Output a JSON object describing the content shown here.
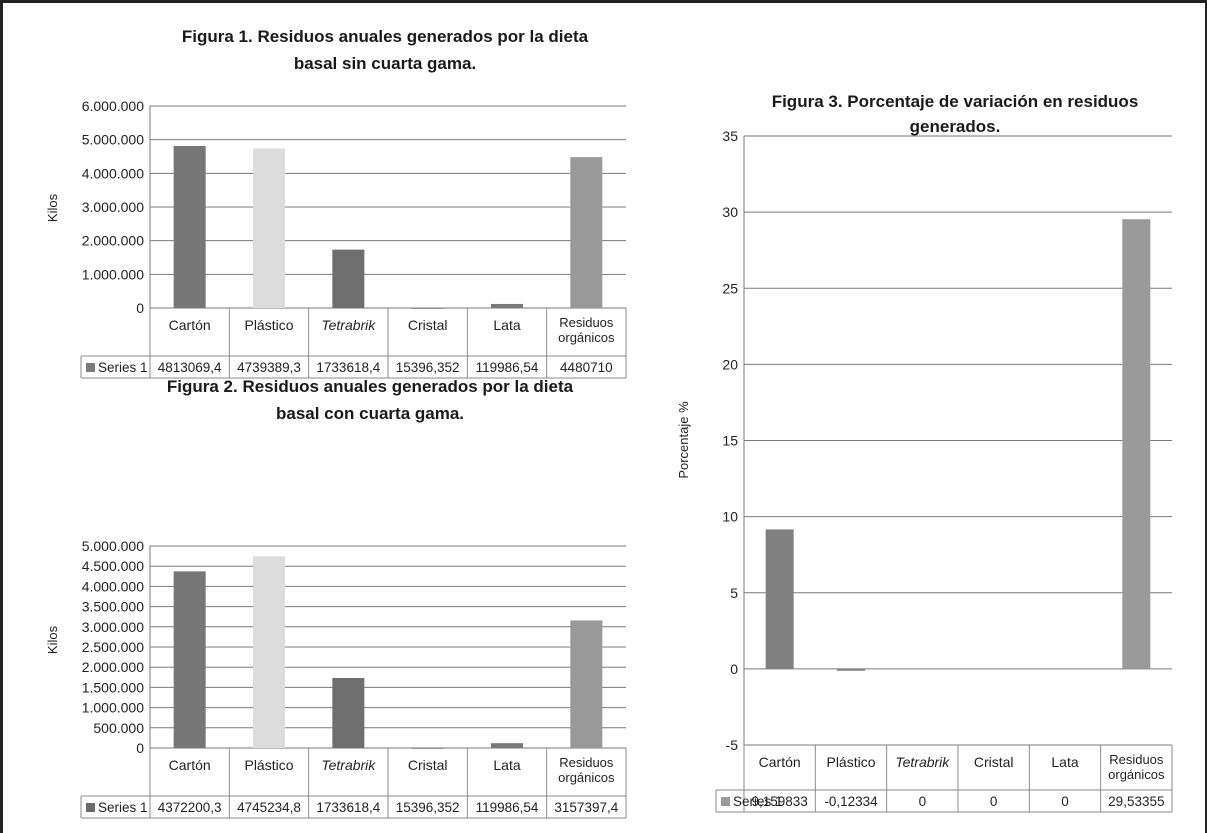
{
  "chart_data": [
    {
      "id": "fig1",
      "type": "bar",
      "title_lines": [
        "Figura 1. Residuos anuales generados por la dieta",
        "basal sin cuarta gama."
      ],
      "ylabel": "Kilos",
      "ylim": [
        0,
        6000000
      ],
      "yticks": [
        "0",
        "1.000.000",
        "2.000.000",
        "3.000.000",
        "4.000.000",
        "5.000.000",
        "6.000.000"
      ],
      "categories": [
        "Cartón",
        "Plástico",
        "Tetrabrik",
        "Cristal",
        "Lata",
        "Residuos orgánicos"
      ],
      "series": [
        {
          "name": "Series 1",
          "values": [
            4813069.4,
            4739389.3,
            1733618.4,
            15396.352,
            119986.54,
            4480710
          ]
        }
      ],
      "table_values": [
        "4813069,4",
        "4739389,3",
        "1733618,4",
        "15396,352",
        "119986,54",
        "4480710"
      ],
      "colors": [
        "#777777",
        "#dcdcdc",
        "#6f6f6f",
        "#8a8a8a",
        "#7a7a7a",
        "#999999"
      ],
      "legend_color": "#7a7a7a",
      "grid": true
    },
    {
      "id": "fig2",
      "type": "bar",
      "title_lines": [
        "Figura 2. Residuos anuales generados por la dieta",
        "basal con cuarta gama."
      ],
      "ylabel": "Kilos",
      "ylim": [
        0,
        5000000
      ],
      "yticks": [
        "0",
        "500.000",
        "1.000.000",
        "1.500.000",
        "2.000.000",
        "2.500.000",
        "3.000.000",
        "3.500.000",
        "4.000.000",
        "4.500.000",
        "5.000.000"
      ],
      "categories": [
        "Cartón",
        "Plástico",
        "Tetrabrik",
        "Cristal",
        "Lata",
        "Residuos orgánicos"
      ],
      "series": [
        {
          "name": "Series 1",
          "values": [
            4372200.3,
            4745234.8,
            1733618.4,
            15396.352,
            119986.54,
            3157397.4
          ]
        }
      ],
      "table_values": [
        "4372200,3",
        "4745234,8",
        "1733618,4",
        "15396,352",
        "119986,54",
        "3157397,4"
      ],
      "colors": [
        "#777777",
        "#dcdcdc",
        "#6f6f6f",
        "#8a8a8a",
        "#7a7a7a",
        "#999999"
      ],
      "legend_color": "#6a6a6a",
      "grid": true
    },
    {
      "id": "fig3",
      "type": "bar",
      "title_lines": [
        "Figura 3. Porcentaje de variación en residuos",
        "generados."
      ],
      "ylabel": "Porcentaje %",
      "ylim": [
        -5,
        35
      ],
      "yticks": [
        "-5",
        "0",
        "5",
        "10",
        "15",
        "20",
        "25",
        "30",
        "35"
      ],
      "categories": [
        "Cartón",
        "Plástico",
        "Tetrabrik",
        "Cristal",
        "Lata",
        "Residuos orgánicos"
      ],
      "series": [
        {
          "name": "Series 1",
          "values": [
            9.159833,
            -0.12334,
            0,
            0,
            0,
            29.53355
          ]
        }
      ],
      "table_values": [
        "9,159833",
        "-0,12334",
        "0",
        "0",
        "0",
        "29,53355"
      ],
      "colors": [
        "#808080",
        "#808080",
        "#808080",
        "#808080",
        "#808080",
        "#9a9a9a"
      ],
      "legend_color": "#9a9a9a",
      "grid": true
    }
  ]
}
